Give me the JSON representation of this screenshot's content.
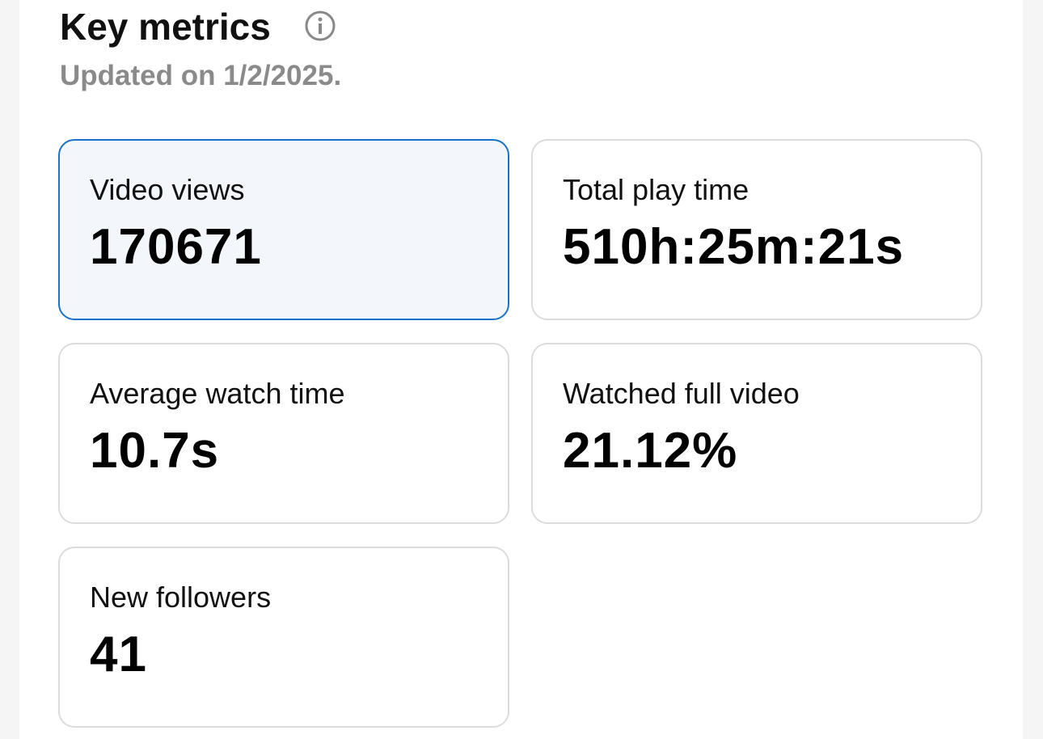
{
  "header": {
    "title": "Key metrics",
    "subtitle": "Updated on 1/2/2025."
  },
  "metrics": [
    {
      "label": "Video views",
      "value": "170671"
    },
    {
      "label": "Total play time",
      "value": "510h:25m:21s"
    },
    {
      "label": "Average watch time",
      "value": "10.7s"
    },
    {
      "label": "Watched full video",
      "value": "21.12%"
    },
    {
      "label": "New followers",
      "value": "41"
    }
  ]
}
